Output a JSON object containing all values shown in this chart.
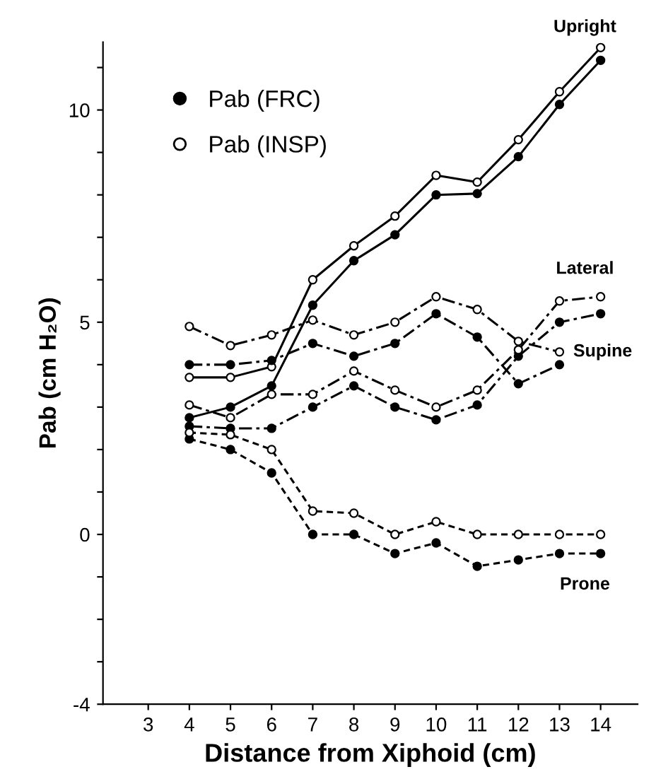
{
  "chart_data": {
    "type": "line",
    "xlabel": "Distance from Xiphoid (cm)",
    "ylabel": "Pab (cm H₂O)",
    "x": [
      4,
      5,
      6,
      7,
      8,
      9,
      10,
      11,
      12,
      13,
      14
    ],
    "xlim": [
      1.9,
      14.9
    ],
    "xticks": [
      3,
      4,
      5,
      6,
      7,
      8,
      9,
      10,
      11,
      12,
      13,
      14
    ],
    "ylim": [
      -4,
      11.6
    ],
    "yticks": [
      -4,
      {
        "value": -3,
        "label": null
      },
      {
        "value": -2,
        "label": null
      },
      {
        "value": -1,
        "label": null
      },
      0,
      {
        "value": 1,
        "label": null
      },
      {
        "value": 2,
        "label": null
      },
      {
        "value": 3,
        "label": null
      },
      {
        "value": 4,
        "label": null
      },
      5,
      {
        "value": 6,
        "label": null
      },
      {
        "value": 7,
        "label": null
      },
      {
        "value": 8,
        "label": null
      },
      {
        "value": 9,
        "label": null
      },
      10,
      {
        "value": 11,
        "label": null
      }
    ],
    "grid": false,
    "legend": "top left",
    "marker": "circle",
    "series": [
      {
        "name": "Pab (FRC)",
        "color": "#000000",
        "line_style": "solid",
        "values": [
          2.75,
          3.0,
          3.5,
          5.4,
          6.45,
          7.06,
          8.0,
          8.03,
          8.9,
          10.13,
          11.17
        ]
      },
      {
        "name": "Pab (INSP)",
        "color": "#ffffff",
        "line_style": "solid",
        "values": [
          3.7,
          3.7,
          3.95,
          6.0,
          6.8,
          7.5,
          8.46,
          8.3,
          9.3,
          10.43,
          11.47
        ]
      },
      {
        "color": "#000000",
        "line_style": "dashdot",
        "values": [
          2.55,
          2.5,
          2.5,
          3.0,
          3.5,
          3.0,
          2.7,
          3.05,
          4.2,
          5.0,
          5.2
        ]
      },
      {
        "color": "#ffffff",
        "line_style": "dashdot",
        "values": [
          3.05,
          2.75,
          3.3,
          3.3,
          3.85,
          3.4,
          3.0,
          3.4,
          4.35,
          5.5,
          5.6
        ]
      },
      {
        "color": "#000000",
        "line_style": "dashdot",
        "values": [
          4.0,
          4.0,
          4.1,
          4.5,
          4.2,
          4.5,
          5.2,
          4.65,
          3.55,
          4.0,
          null
        ]
      },
      {
        "color": "#ffffff",
        "line_style": "dashdot",
        "values": [
          4.9,
          4.45,
          4.7,
          5.05,
          4.7,
          5.0,
          5.6,
          5.3,
          4.55,
          4.3,
          null
        ]
      },
      {
        "color": "#000000",
        "line_style": "dashed",
        "values": [
          2.25,
          2.0,
          1.45,
          0.0,
          0.0,
          -0.45,
          -0.2,
          -0.75,
          -0.6,
          -0.45,
          -0.45
        ]
      },
      {
        "color": "#ffffff",
        "line_style": "dashed",
        "values": [
          2.4,
          2.35,
          2.0,
          0.55,
          0.5,
          0.0,
          0.3,
          0.0,
          0.0,
          0.0,
          0.0
        ]
      }
    ],
    "annotations": [
      "Upright",
      "Lateral",
      "Supine",
      "Prone"
    ]
  }
}
